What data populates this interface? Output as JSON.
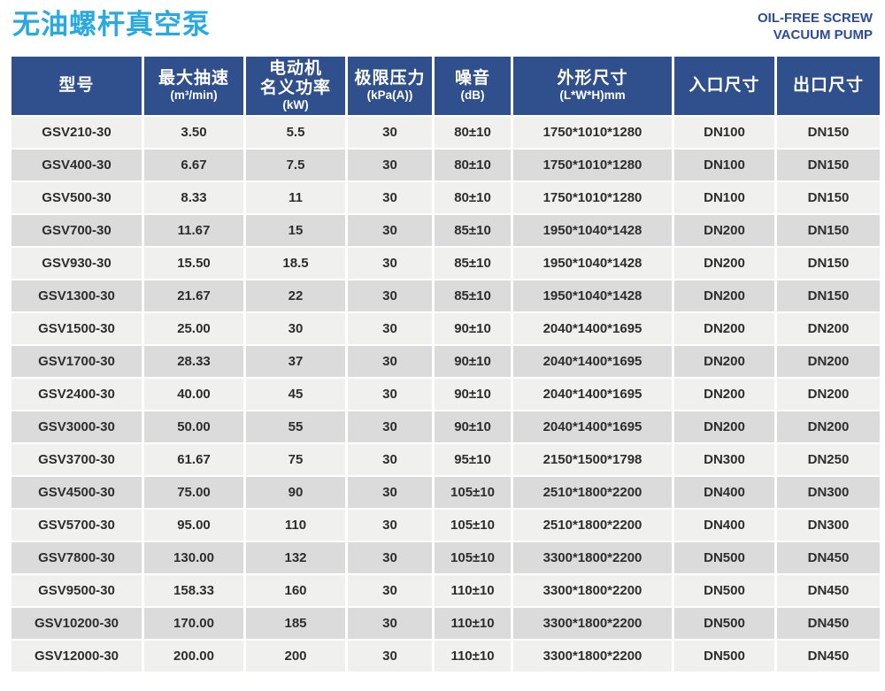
{
  "page": {
    "title": "无油螺杆真空泵",
    "subtitle_line1": "OIL-FREE SCREW",
    "subtitle_line2": "VACUUM PUMP"
  },
  "colors": {
    "title_blue": "#29A9E1",
    "subtitle_blue": "#2B4C9C",
    "header_bg": "#30508D",
    "row_odd": "#F0F0EF",
    "row_even": "#DBDBDB",
    "cell_text": "#2D2D2D"
  },
  "table": {
    "columns": [
      {
        "key": "model",
        "lines": [
          "型号"
        ]
      },
      {
        "key": "max-pumping-speed",
        "lines": [
          "最大抽速",
          "(m³/min)"
        ]
      },
      {
        "key": "motor-rated-power",
        "lines": [
          "电动机",
          "名义功率",
          "(kW)"
        ]
      },
      {
        "key": "ultimate-pressure",
        "lines": [
          "极限压力",
          "(kPa(A))"
        ]
      },
      {
        "key": "noise",
        "lines": [
          "噪音",
          "(dB)"
        ]
      },
      {
        "key": "dimensions",
        "lines": [
          "外形尺寸",
          "(L*W*H)mm"
        ]
      },
      {
        "key": "inlet-size",
        "lines": [
          "入口尺寸"
        ]
      },
      {
        "key": "outlet-size",
        "lines": [
          "出口尺寸"
        ]
      }
    ],
    "rows": [
      [
        "GSV210-30",
        "3.50",
        "5.5",
        "30",
        "80±10",
        "1750*1010*1280",
        "DN100",
        "DN150"
      ],
      [
        "GSV400-30",
        "6.67",
        "7.5",
        "30",
        "80±10",
        "1750*1010*1280",
        "DN100",
        "DN150"
      ],
      [
        "GSV500-30",
        "8.33",
        "11",
        "30",
        "80±10",
        "1750*1010*1280",
        "DN100",
        "DN150"
      ],
      [
        "GSV700-30",
        "11.67",
        "15",
        "30",
        "85±10",
        "1950*1040*1428",
        "DN200",
        "DN150"
      ],
      [
        "GSV930-30",
        "15.50",
        "18.5",
        "30",
        "85±10",
        "1950*1040*1428",
        "DN200",
        "DN150"
      ],
      [
        "GSV1300-30",
        "21.67",
        "22",
        "30",
        "85±10",
        "1950*1040*1428",
        "DN200",
        "DN150"
      ],
      [
        "GSV1500-30",
        "25.00",
        "30",
        "30",
        "90±10",
        "2040*1400*1695",
        "DN200",
        "DN200"
      ],
      [
        "GSV1700-30",
        "28.33",
        "37",
        "30",
        "90±10",
        "2040*1400*1695",
        "DN200",
        "DN200"
      ],
      [
        "GSV2400-30",
        "40.00",
        "45",
        "30",
        "90±10",
        "2040*1400*1695",
        "DN200",
        "DN200"
      ],
      [
        "GSV3000-30",
        "50.00",
        "55",
        "30",
        "90±10",
        "2040*1400*1695",
        "DN200",
        "DN200"
      ],
      [
        "GSV3700-30",
        "61.67",
        "75",
        "30",
        "95±10",
        "2150*1500*1798",
        "DN300",
        "DN250"
      ],
      [
        "GSV4500-30",
        "75.00",
        "90",
        "30",
        "105±10",
        "2510*1800*2200",
        "DN400",
        "DN300"
      ],
      [
        "GSV5700-30",
        "95.00",
        "110",
        "30",
        "105±10",
        "2510*1800*2200",
        "DN400",
        "DN300"
      ],
      [
        "GSV7800-30",
        "130.00",
        "132",
        "30",
        "105±10",
        "3300*1800*2200",
        "DN500",
        "DN450"
      ],
      [
        "GSV9500-30",
        "158.33",
        "160",
        "30",
        "110±10",
        "3300*1800*2200",
        "DN500",
        "DN450"
      ],
      [
        "GSV10200-30",
        "170.00",
        "185",
        "30",
        "110±10",
        "3300*1800*2200",
        "DN500",
        "DN450"
      ],
      [
        "GSV12000-30",
        "200.00",
        "200",
        "30",
        "110±10",
        "3300*1800*2200",
        "DN500",
        "DN450"
      ]
    ]
  }
}
